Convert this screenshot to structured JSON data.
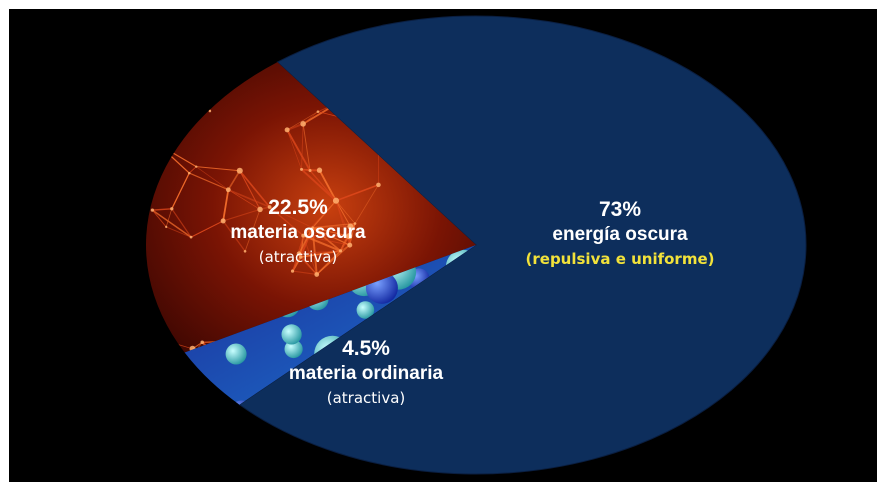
{
  "chart_data": {
    "type": "pie",
    "slices": [
      {
        "key": "dark_energy",
        "value": 73,
        "pct_label": "73%",
        "name": "energía oscura",
        "note": "(repulsiva e uniforme)",
        "color": "#0d2e5c"
      },
      {
        "key": "dark_matter",
        "value": 22.5,
        "pct_label": "22.5%",
        "name": "materia oscura",
        "note": "(atractiva)",
        "color": "#7a1404"
      },
      {
        "key": "ordinary_matter",
        "value": 4.5,
        "pct_label": "4.5%",
        "name": "materia ordinaria",
        "note": "(atractiva)",
        "color": "#1a3fb0"
      }
    ],
    "legend": "none",
    "background": "#000000"
  }
}
